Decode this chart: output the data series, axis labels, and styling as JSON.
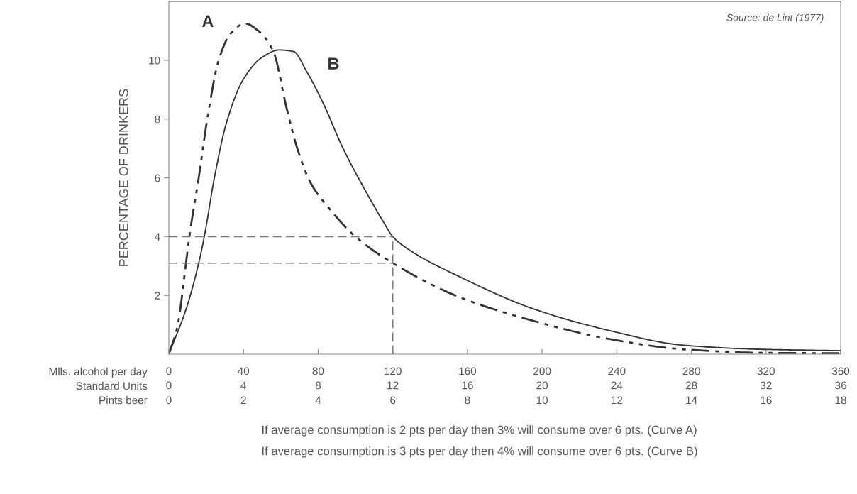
{
  "chart_data": {
    "type": "line",
    "ylabel": "PERCENTAGE OF DRINKERS",
    "xlim": [
      0,
      360
    ],
    "ylim": [
      0,
      12
    ],
    "xlabel": "Mlls. alcohol per day",
    "xticks": [
      0,
      40,
      80,
      120,
      160,
      200,
      240,
      280,
      320,
      360
    ],
    "x2label": "Standard Units",
    "x2lim": [
      0,
      36
    ],
    "x2ticks": [
      0,
      4,
      8,
      12,
      16,
      20,
      24,
      28,
      32,
      36
    ],
    "yticks": [
      2,
      4,
      6,
      8,
      10
    ],
    "grid": false,
    "legend": false,
    "series": [
      {
        "color": "#333333",
        "line_style": "dashdotdot",
        "x": [
          0,
          4.6,
          9.2,
          11,
          16,
          20.6,
          26.7,
          33,
          40.8,
          48,
          56,
          63,
          68.6,
          75.8,
          85.8,
          100,
          120,
          155,
          195,
          235,
          275,
          315,
          360
        ],
        "values": [
          0,
          0.94,
          3.1,
          4.0,
          6.0,
          8.0,
          10.0,
          10.9,
          11.25,
          11.0,
          10.3,
          8.4,
          7.05,
          5.85,
          4.97,
          4.0,
          3.1,
          1.96,
          1.14,
          0.53,
          0.17,
          0.05,
          0.03
        ]
      },
      {
        "color": "#333333",
        "line_style": "solid",
        "x": [
          0,
          9.6,
          16,
          19,
          24.4,
          31,
          40,
          50,
          59,
          66.7,
          74,
          83,
          93,
          105,
          115,
          120,
          130,
          155,
          195,
          235,
          275,
          315,
          360
        ],
        "values": [
          0,
          1.6,
          3.1,
          4.0,
          6.0,
          7.9,
          9.36,
          10.1,
          10.35,
          10.3,
          9.6,
          8.5,
          7.05,
          5.6,
          4.5,
          4.0,
          3.5,
          2.66,
          1.55,
          0.82,
          0.31,
          0.17,
          0.12
        ]
      }
    ],
    "ref_lines": [
      {
        "axis": "y",
        "value": 4,
        "color": "#777777",
        "line_style": "dashed"
      },
      {
        "axis": "y",
        "value": 3.1,
        "color": "#777777",
        "line_style": "dashed"
      },
      {
        "axis": "x",
        "value": 120,
        "color": "#777777",
        "line_style": "dashed"
      }
    ],
    "annotations": [
      "A",
      "B",
      "Source: de Lint (1977)",
      "If average consumption is 2 pts per day then 3% will consume over 6 pts. (Curve A)",
      "If average consumption is 3 pts per day then 4% will consume over 6 pts. (Curve B)",
      "Pints beer",
      "0",
      "2",
      "4",
      "6",
      "8",
      "10",
      "12",
      "14",
      "16",
      "18"
    ]
  }
}
